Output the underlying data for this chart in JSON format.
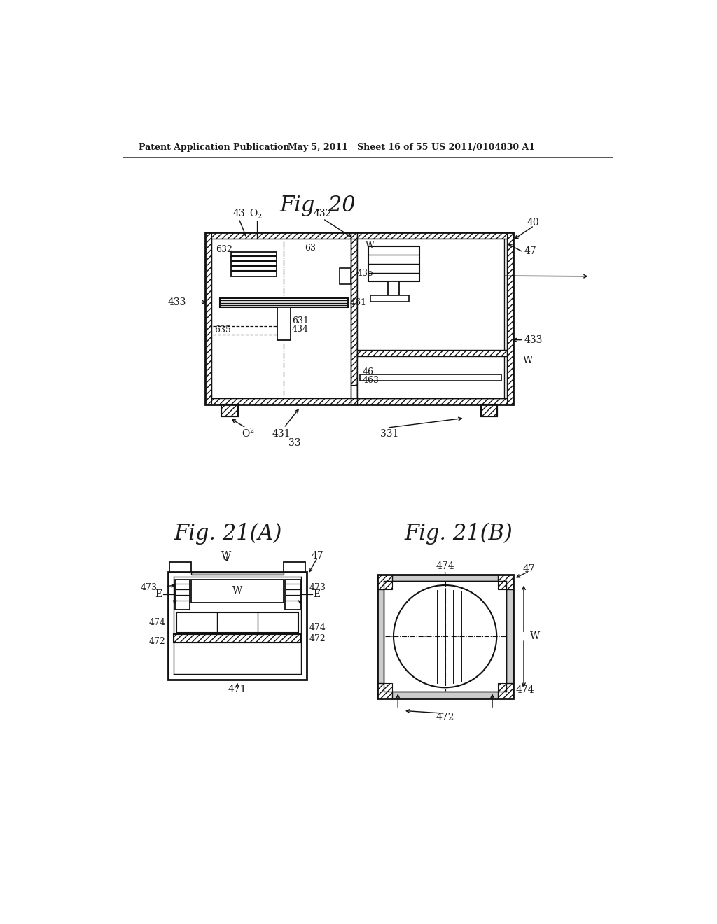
{
  "bg_color": "#ffffff",
  "header_left": "Patent Application Publication",
  "header_mid": "May 5, 2011   Sheet 16 of 55",
  "header_right": "US 2011/0104830 A1",
  "fig20_title": "Fig. 20",
  "fig21a_title": "Fig. 21(A)",
  "fig21b_title": "Fig. 21(B)",
  "text_color": "#1a1a1a",
  "line_color": "#111111"
}
